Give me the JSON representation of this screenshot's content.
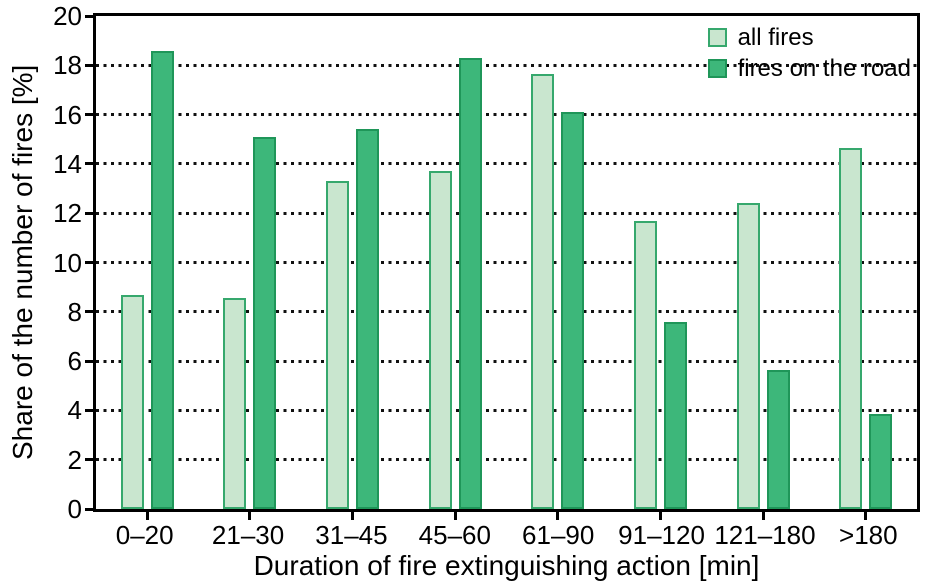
{
  "chart_data": {
    "type": "bar",
    "title": "",
    "categories": [
      "0–20",
      "21–30",
      "31–45",
      "45–60",
      "61–90",
      "91–120",
      "121–180",
      ">180"
    ],
    "series": [
      {
        "name": "all fires",
        "fill": "#c9e6cf",
        "border": "#36a86d",
        "values": [
          8.7,
          8.55,
          13.3,
          13.7,
          17.65,
          11.7,
          12.4,
          14.65
        ]
      },
      {
        "name": "fires on the road",
        "fill": "#3db77a",
        "border": "#1f9659",
        "values": [
          18.6,
          15.1,
          15.4,
          18.3,
          16.1,
          7.6,
          5.65,
          3.85
        ]
      }
    ],
    "xlabel": "Duration of fire extinguishing action [min]",
    "ylabel": "Share of the number of fires [%]",
    "ylim": [
      0,
      20
    ],
    "ytick_step": 2,
    "y_ticks": [
      "0",
      "2",
      "4",
      "6",
      "8",
      "10",
      "12",
      "14",
      "16",
      "18",
      "20"
    ],
    "grid": "horizontal-dotted",
    "legend_position": "top-right",
    "colors": {
      "axis": "#000000",
      "grid": "#111111",
      "text": "#000000",
      "background": "#ffffff"
    }
  }
}
